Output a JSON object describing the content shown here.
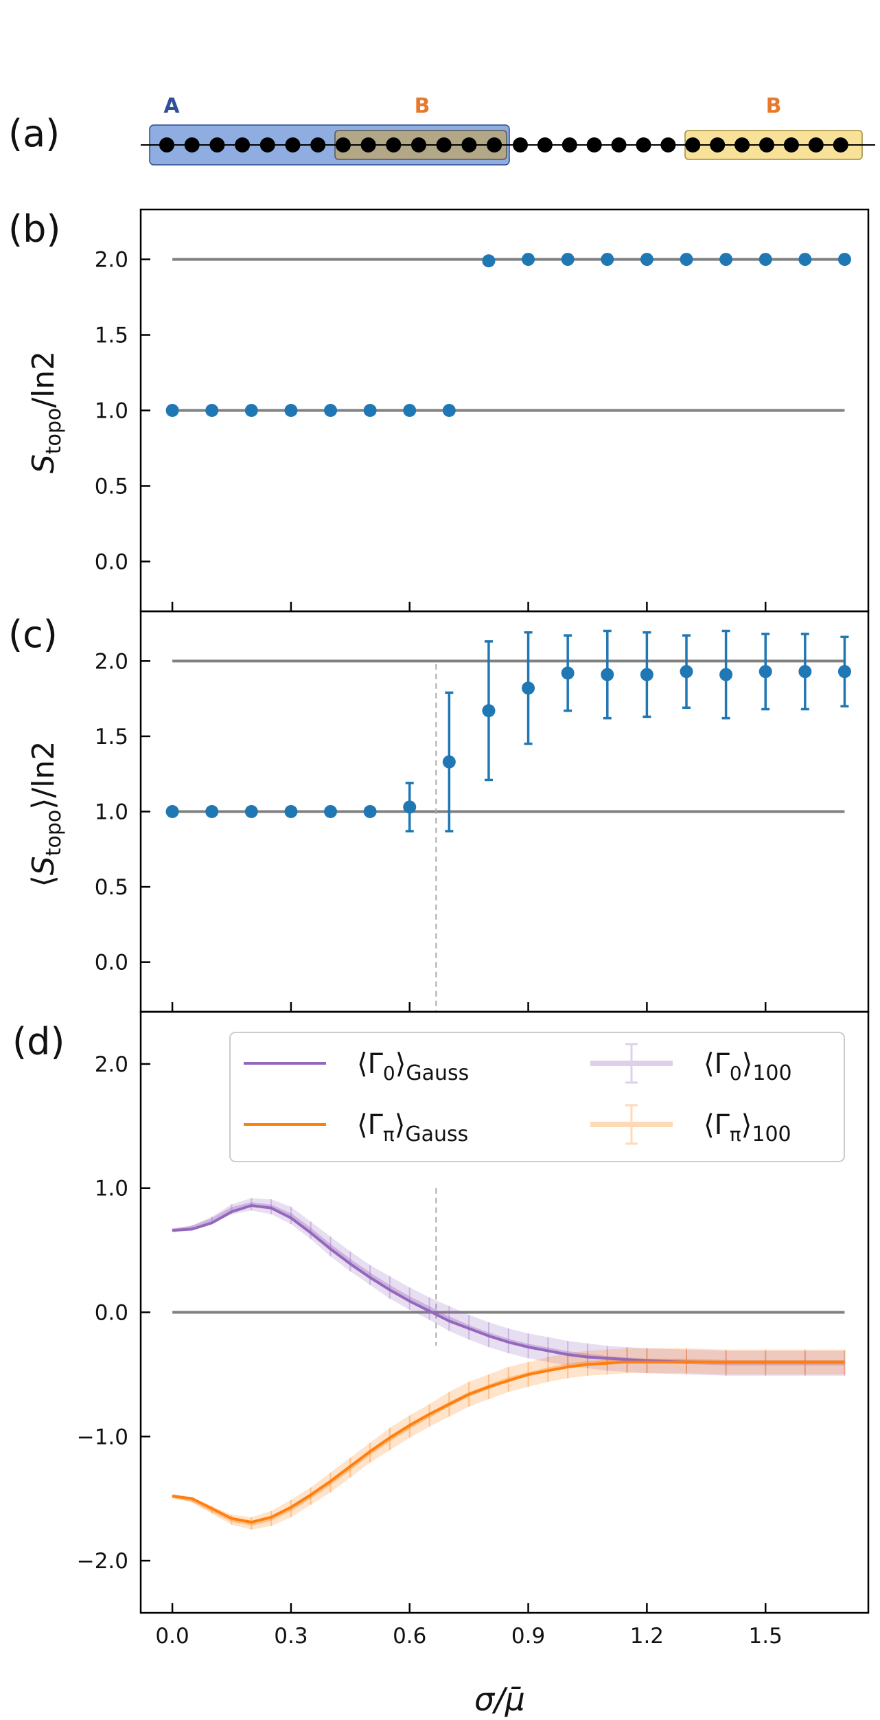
{
  "panel_labels": {
    "a": "(a)",
    "b": "(b)",
    "c": "(c)",
    "d": "(d)"
  },
  "chain": {
    "region_a_label": "A",
    "region_b_label": "B",
    "colors": {
      "a_fill": "#7b9fdc",
      "a_stroke": "#2c4b8e",
      "overlap_fill": "#b2a787",
      "b_fill": "#f8e29a",
      "b_stroke": "#a08a3c",
      "label_a": "#2f4f98",
      "label_b": "#e8792a"
    }
  },
  "axis_labels": {
    "x": {
      "main": "σ/μ̄"
    },
    "b_y": {
      "sym": "S",
      "sub": "topo",
      "tail": "/ln2"
    },
    "c_y": {
      "open": "⟨",
      "sym": "S",
      "sub": "topo",
      "close": "⟩",
      "tail": "/ln2"
    }
  },
  "legend": {
    "g0_gauss": {
      "open": "⟨Γ",
      "sub0": "0",
      "close": "⟩",
      "sub": "Gauss"
    },
    "gpi_gauss": {
      "open": "⟨Γ",
      "sub0": "π",
      "close": "⟩",
      "sub": "Gauss"
    },
    "g0_100": {
      "open": "⟨Γ",
      "sub0": "0",
      "close": "⟩",
      "sub": "100"
    },
    "gpi_100": {
      "open": "⟨Γ",
      "sub0": "π",
      "close": "⟩",
      "sub": "100"
    }
  },
  "chart_data": [
    {
      "id": "b",
      "type": "scatter",
      "xlabel": "σ/μ̄",
      "ylabel": "S_topo/ln2",
      "xlim": [
        -0.08,
        1.76
      ],
      "ylim": [
        -0.33,
        2.33
      ],
      "xticks": [
        "0.0",
        "0.3",
        "0.6",
        "0.9",
        "1.2",
        "1.5"
      ],
      "xtick_values": [
        0,
        0.3,
        0.6,
        0.9,
        1.2,
        1.5
      ],
      "yticks": [
        "0.0",
        "0.5",
        "1.0",
        "1.5",
        "2.0"
      ],
      "ytick_values": [
        0,
        0.5,
        1.0,
        1.5,
        2.0
      ],
      "reference_lines": [
        {
          "y": 1.0,
          "x": [
            0,
            1.7
          ]
        },
        {
          "y": 2.0,
          "x": [
            0,
            1.7
          ]
        }
      ],
      "x": [
        0,
        0.1,
        0.2,
        0.3,
        0.4,
        0.5,
        0.6,
        0.7,
        0.8,
        0.9,
        1.0,
        1.1,
        1.2,
        1.3,
        1.4,
        1.5,
        1.6,
        1.7
      ],
      "y": [
        1,
        1,
        1,
        1,
        1,
        1,
        1,
        1,
        1.99,
        2,
        2,
        2,
        2,
        2,
        2,
        2,
        2,
        2
      ],
      "color": "#1f77b4"
    },
    {
      "id": "c",
      "type": "scatter",
      "xlabel": "σ/μ̄",
      "ylabel": "⟨S_topo⟩/ln2",
      "xlim": [
        -0.08,
        1.76
      ],
      "ylim": [
        -0.33,
        2.33
      ],
      "xticks": [
        "0.0",
        "0.3",
        "0.6",
        "0.9",
        "1.2",
        "1.5"
      ],
      "xtick_values": [
        0,
        0.3,
        0.6,
        0.9,
        1.2,
        1.5
      ],
      "yticks": [
        "0.0",
        "0.5",
        "1.0",
        "1.5",
        "2.0"
      ],
      "ytick_values": [
        0,
        0.5,
        1.0,
        1.5,
        2.0
      ],
      "reference_lines": [
        {
          "y": 1.0,
          "x": [
            0,
            1.7
          ]
        },
        {
          "y": 2.0,
          "x": [
            0,
            1.7
          ]
        }
      ],
      "vline_x": 0.667,
      "x": [
        0,
        0.1,
        0.2,
        0.3,
        0.4,
        0.5,
        0.6,
        0.7,
        0.8,
        0.9,
        1.0,
        1.1,
        1.2,
        1.3,
        1.4,
        1.5,
        1.6,
        1.7
      ],
      "y": [
        1,
        1,
        1,
        1,
        1,
        1,
        1.03,
        1.33,
        1.67,
        1.82,
        1.92,
        1.91,
        1.91,
        1.93,
        1.91,
        1.93,
        1.93,
        1.93
      ],
      "yerr": [
        0,
        0,
        0,
        0,
        0,
        0,
        0.16,
        0.46,
        0.46,
        0.37,
        0.25,
        0.29,
        0.28,
        0.24,
        0.29,
        0.25,
        0.25,
        0.23
      ],
      "color": "#1f77b4"
    },
    {
      "id": "d",
      "type": "line",
      "xlabel": "σ/μ̄",
      "ylabel": "",
      "xlim": [
        -0.08,
        1.76
      ],
      "ylim": [
        -2.42,
        2.42
      ],
      "xticks": [
        "0.0",
        "0.3",
        "0.6",
        "0.9",
        "1.2",
        "1.5"
      ],
      "xtick_values": [
        0,
        0.3,
        0.6,
        0.9,
        1.2,
        1.5
      ],
      "yticks": [
        "−2.0",
        "−1.0",
        "0.0",
        "1.0",
        "2.0"
      ],
      "ytick_values": [
        -2,
        -1,
        0,
        1,
        2
      ],
      "reference_lines": [
        {
          "y": 0.0,
          "x": [
            0,
            1.7
          ]
        }
      ],
      "vline_x": 0.667,
      "x": [
        0,
        0.05,
        0.1,
        0.15,
        0.2,
        0.25,
        0.3,
        0.35,
        0.4,
        0.45,
        0.5,
        0.55,
        0.6,
        0.65,
        0.7,
        0.75,
        0.8,
        0.85,
        0.9,
        0.95,
        1.0,
        1.05,
        1.1,
        1.15,
        1.2,
        1.3,
        1.4,
        1.5,
        1.6,
        1.7
      ],
      "series": [
        {
          "name": "⟨Γ0⟩Gauss",
          "color": "#9467bd",
          "values": [
            0.66,
            0.67,
            0.72,
            0.81,
            0.86,
            0.84,
            0.76,
            0.64,
            0.51,
            0.39,
            0.28,
            0.18,
            0.09,
            0.01,
            -0.07,
            -0.13,
            -0.19,
            -0.24,
            -0.28,
            -0.31,
            -0.34,
            -0.36,
            -0.37,
            -0.38,
            -0.39,
            -0.4,
            -0.4,
            -0.4,
            -0.4,
            -0.4
          ]
        },
        {
          "name": "⟨Γπ⟩Gauss",
          "color": "#ff7f0e",
          "values": [
            -1.48,
            -1.5,
            -1.58,
            -1.66,
            -1.69,
            -1.65,
            -1.57,
            -1.47,
            -1.36,
            -1.24,
            -1.12,
            -1.01,
            -0.91,
            -0.82,
            -0.74,
            -0.66,
            -0.6,
            -0.55,
            -0.5,
            -0.47,
            -0.44,
            -0.42,
            -0.41,
            -0.4,
            -0.4,
            -0.4,
            -0.4,
            -0.4,
            -0.4,
            -0.4
          ]
        },
        {
          "name": "⟨Γ0⟩100",
          "color": "#9467bd",
          "values": [
            0.66,
            0.68,
            0.74,
            0.83,
            0.87,
            0.85,
            0.78,
            0.66,
            0.53,
            0.41,
            0.3,
            0.2,
            0.11,
            0.03,
            -0.05,
            -0.12,
            -0.18,
            -0.23,
            -0.27,
            -0.3,
            -0.33,
            -0.35,
            -0.37,
            -0.38,
            -0.39,
            -0.4,
            -0.41,
            -0.41,
            -0.41,
            -0.41
          ],
          "err": [
            0.01,
            0.02,
            0.03,
            0.04,
            0.05,
            0.06,
            0.07,
            0.07,
            0.08,
            0.08,
            0.08,
            0.09,
            0.09,
            0.09,
            0.1,
            0.1,
            0.1,
            0.1,
            0.1,
            0.1,
            0.1,
            0.1,
            0.1,
            0.1,
            0.1,
            0.1,
            0.1,
            0.1,
            0.1,
            0.1
          ]
        },
        {
          "name": "⟨Γπ⟩100",
          "color": "#ff7f0e",
          "values": [
            -1.48,
            -1.51,
            -1.59,
            -1.67,
            -1.7,
            -1.66,
            -1.58,
            -1.48,
            -1.37,
            -1.25,
            -1.13,
            -1.02,
            -0.92,
            -0.83,
            -0.74,
            -0.66,
            -0.6,
            -0.54,
            -0.5,
            -0.46,
            -0.43,
            -0.41,
            -0.4,
            -0.39,
            -0.39,
            -0.39,
            -0.4,
            -0.4,
            -0.4,
            -0.4
          ],
          "err": [
            0.01,
            0.02,
            0.03,
            0.04,
            0.05,
            0.06,
            0.07,
            0.07,
            0.08,
            0.08,
            0.08,
            0.09,
            0.09,
            0.09,
            0.1,
            0.1,
            0.1,
            0.1,
            0.1,
            0.1,
            0.1,
            0.1,
            0.1,
            0.1,
            0.1,
            0.1,
            0.1,
            0.1,
            0.1,
            0.1
          ]
        }
      ]
    }
  ]
}
